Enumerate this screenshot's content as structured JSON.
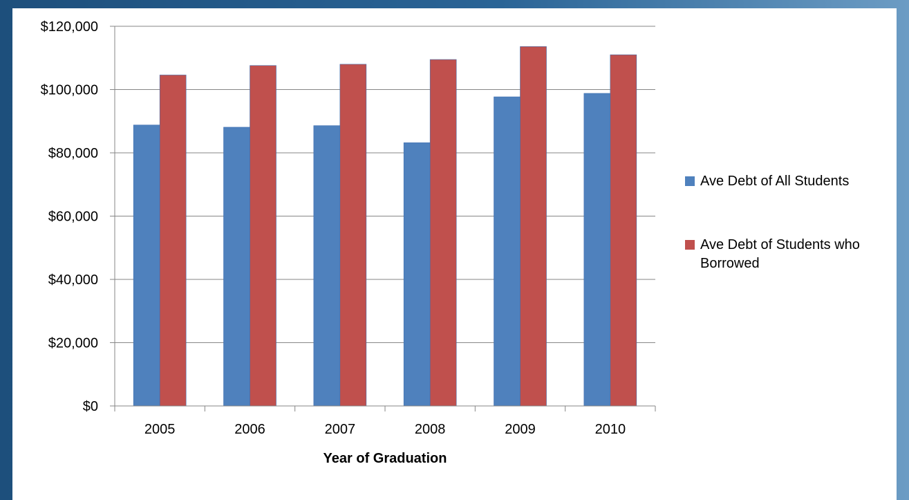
{
  "chart_data": {
    "type": "bar",
    "title": "",
    "xlabel": "Year of Graduation",
    "ylabel": "",
    "categories": [
      "2005",
      "2006",
      "2007",
      "2008",
      "2009",
      "2010"
    ],
    "series": [
      {
        "name": "Ave Debt of All Students",
        "values": [
          88800,
          88100,
          88600,
          83200,
          97700,
          98800
        ],
        "color": "#4f81bd"
      },
      {
        "name": "Ave Debt of Students who Borrowed",
        "values": [
          104600,
          107600,
          108000,
          109500,
          113600,
          111000
        ],
        "color": "#c0504d"
      }
    ],
    "ylim": [
      0,
      120000
    ],
    "yticks": [
      "$0",
      "$20,000",
      "$40,000",
      "$60,000",
      "$80,000",
      "$100,000",
      "$120,000"
    ],
    "ytick_values": [
      0,
      20000,
      40000,
      60000,
      80000,
      100000,
      120000
    ],
    "grid": true,
    "legend_position": "right",
    "legend_lines": [
      [
        "Ave Debt of All Students"
      ],
      [
        "Ave Debt of Students who",
        "Borrowed"
      ]
    ]
  }
}
